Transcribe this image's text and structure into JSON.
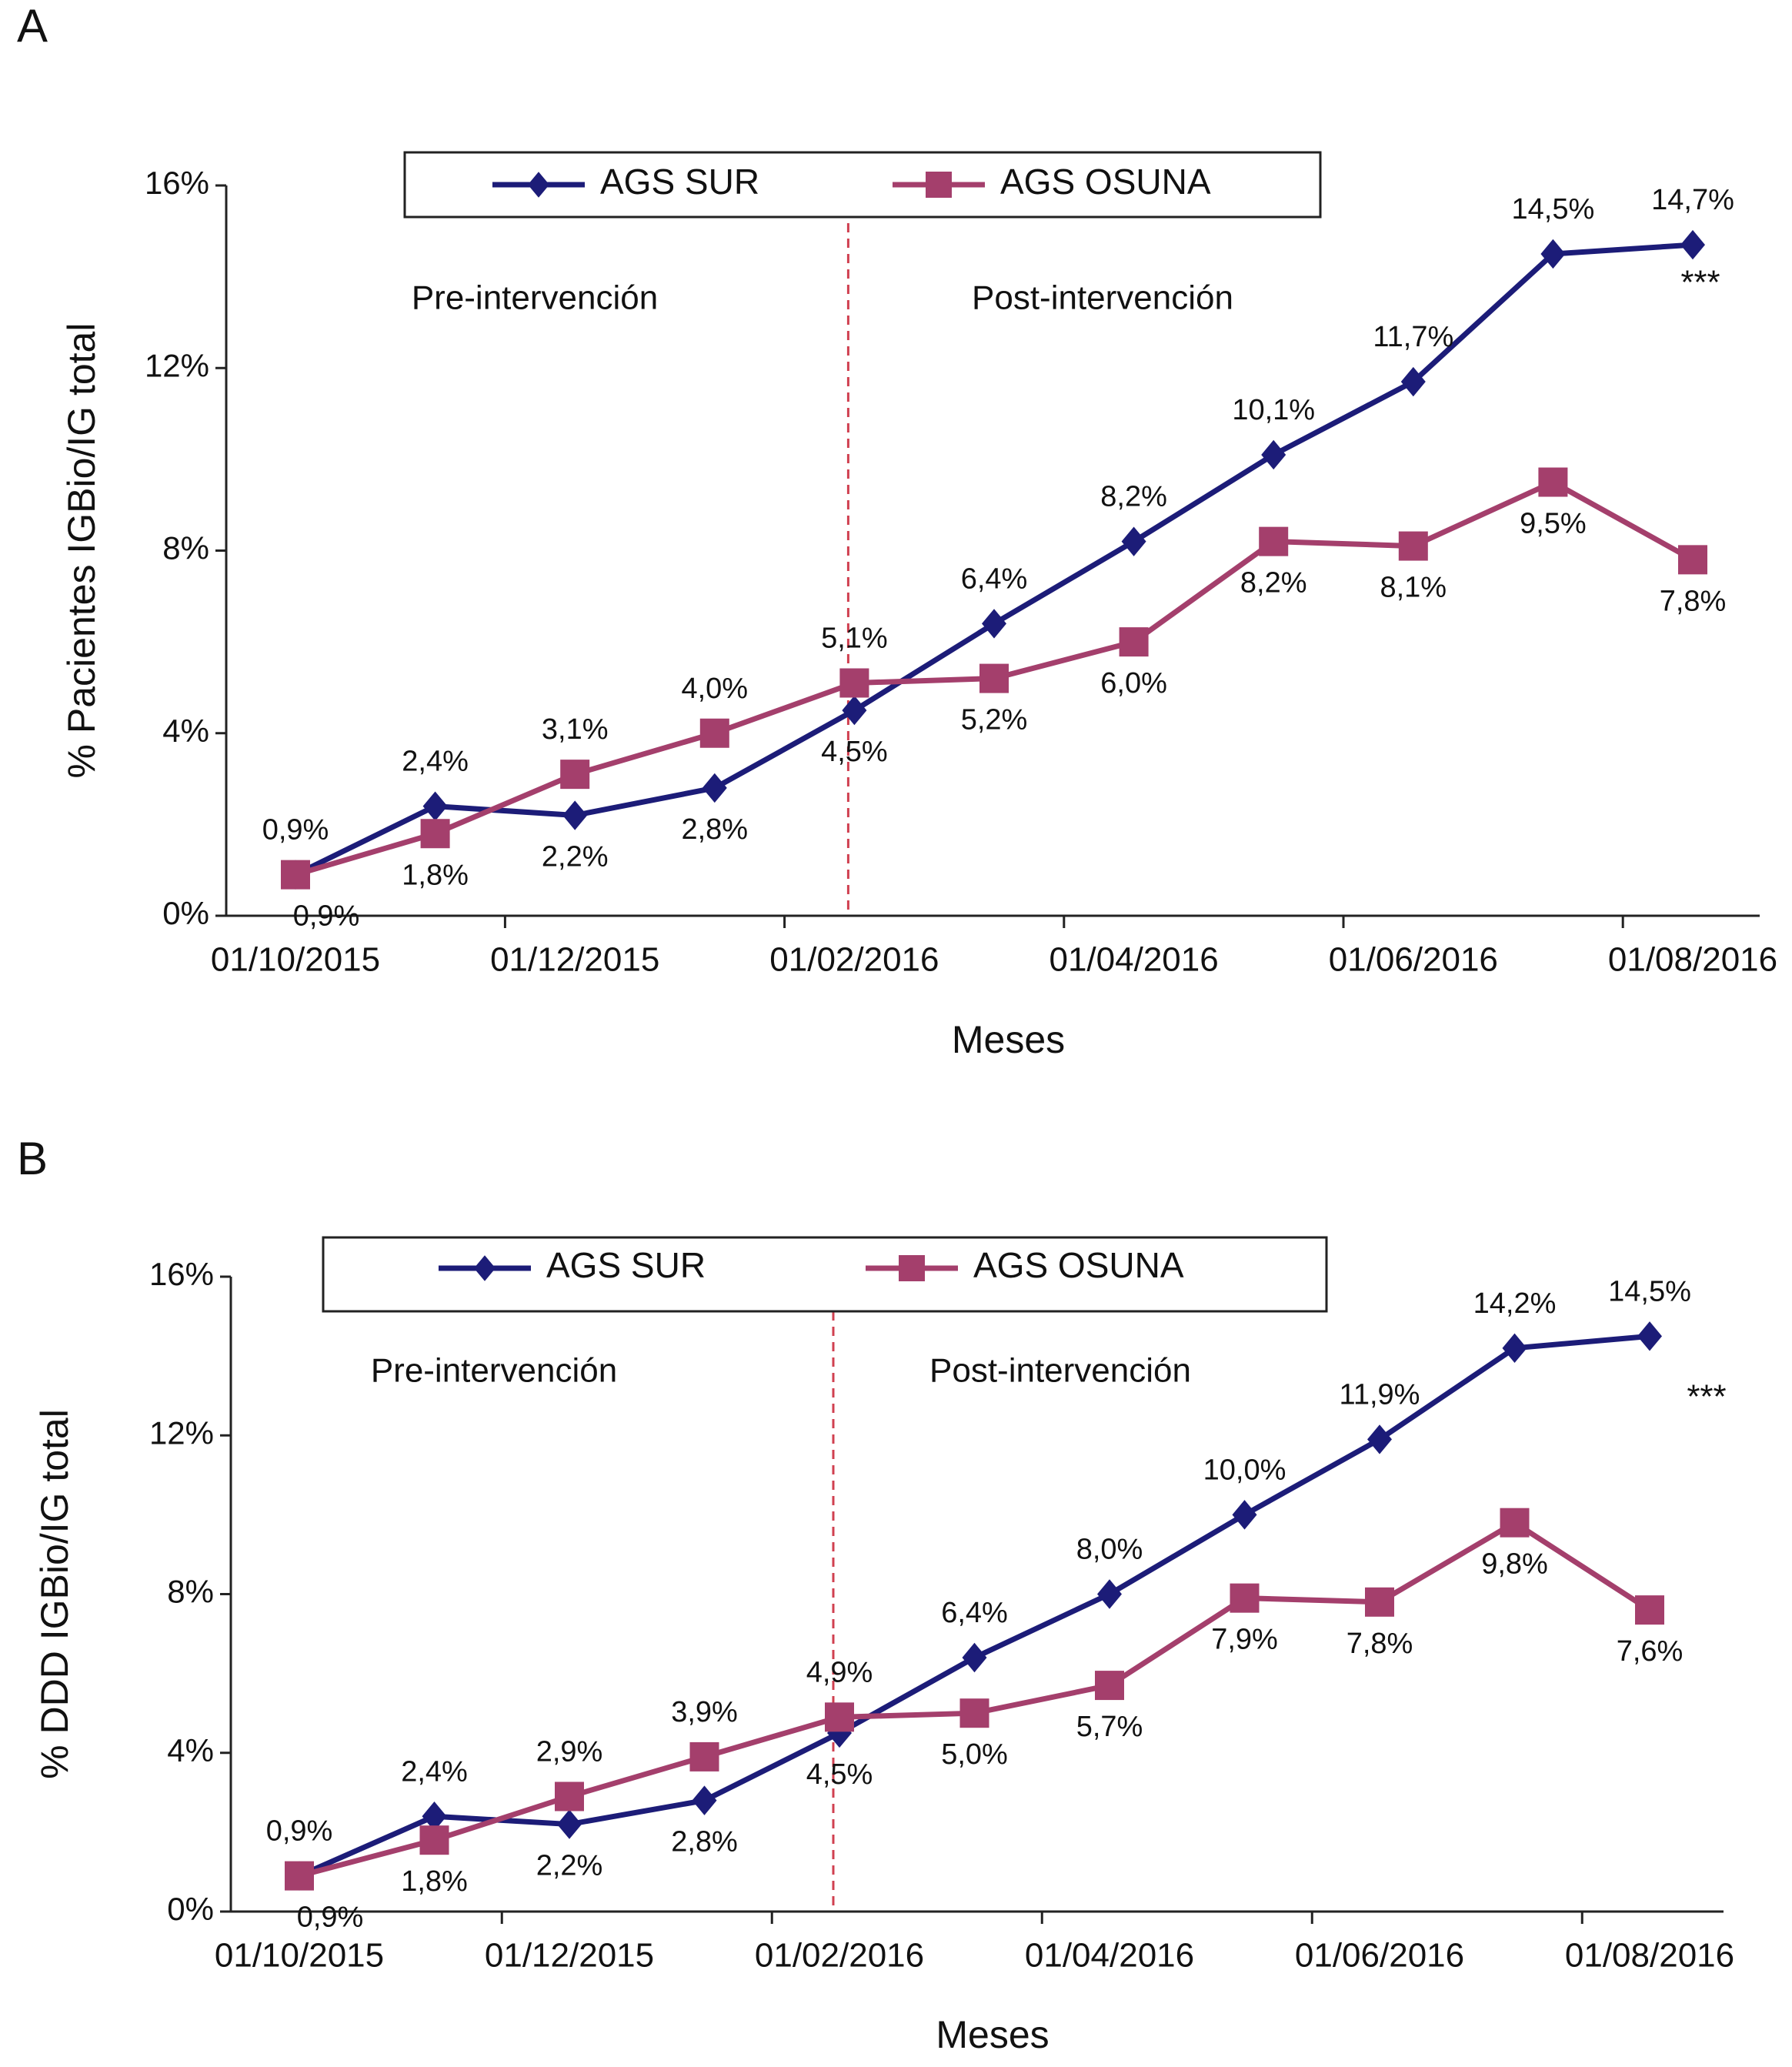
{
  "chart_data": [
    {
      "type": "line",
      "panel_label": "A",
      "y_label": "% Pacientes IGBio/IG total",
      "x_label": "Meses",
      "annotations": [
        "Pre-intervención",
        "Post-intervención",
        "***"
      ],
      "categories": [
        "01/10/2015",
        null,
        "01/12/2015",
        null,
        "01/02/2016",
        null,
        "01/04/2016",
        null,
        "01/06/2016",
        null,
        "01/08/2016"
      ],
      "ylim": [
        0,
        16
      ],
      "yticks": [
        {
          "value": 0,
          "label": "0%"
        },
        {
          "value": 4,
          "label": "4%"
        },
        {
          "value": 8,
          "label": "8%"
        },
        {
          "value": 12,
          "label": "12%"
        },
        {
          "value": 16,
          "label": "16%"
        }
      ],
      "series": [
        {
          "name": "AGS SUR",
          "color": "#1c1c78",
          "marker": "diamond",
          "values": [
            0.9,
            2.4,
            2.2,
            2.8,
            4.5,
            6.4,
            8.2,
            10.1,
            11.7,
            14.5,
            14.7
          ],
          "value_labels": [
            "0,9%",
            "2,4%",
            "2,2%",
            "2,8%",
            "4,5%",
            "6,4%",
            "8,2%",
            "10,1%",
            "11,7%",
            "14,5%",
            "14,7%"
          ]
        },
        {
          "name": "AGS OSUNA",
          "color": "#a43f6c",
          "marker": "square",
          "values": [
            0.9,
            1.8,
            3.1,
            4.0,
            5.1,
            5.2,
            6.0,
            8.2,
            8.1,
            9.5,
            7.8
          ],
          "value_labels": [
            "0,9%",
            "1,8%",
            "3,1%",
            "4,0%",
            "5,1%",
            "5,2%",
            "6,0%",
            "8,2%",
            "8,1%",
            "9,5%",
            "7,8%"
          ]
        }
      ]
    },
    {
      "type": "line",
      "panel_label": "B",
      "y_label": "% DDD IGBio/IG total",
      "x_label": "Meses",
      "annotations": [
        "Pre-intervención",
        "Post-intervención",
        "***"
      ],
      "categories": [
        "01/10/2015",
        null,
        "01/12/2015",
        null,
        "01/02/2016",
        null,
        "01/04/2016",
        null,
        "01/06/2016",
        null,
        "01/08/2016"
      ],
      "ylim": [
        0,
        16
      ],
      "yticks": [
        {
          "value": 0,
          "label": "0%"
        },
        {
          "value": 4,
          "label": "4%"
        },
        {
          "value": 8,
          "label": "8%"
        },
        {
          "value": 12,
          "label": "12%"
        },
        {
          "value": 16,
          "label": "16%"
        }
      ],
      "series": [
        {
          "name": "AGS SUR",
          "color": "#1c1c78",
          "marker": "diamond",
          "values": [
            0.9,
            2.4,
            2.2,
            2.8,
            4.5,
            6.4,
            8.0,
            10.0,
            11.9,
            14.2,
            14.5
          ],
          "value_labels": [
            "0,9%",
            "2,4%",
            "2,2%",
            "2,8%",
            "4,5%",
            "6,4%",
            "8,0%",
            "10,0%",
            "11,9%",
            "14,2%",
            "14,5%"
          ]
        },
        {
          "name": "AGS OSUNA",
          "color": "#a43f6c",
          "marker": "square",
          "values": [
            0.9,
            1.8,
            2.9,
            3.9,
            4.9,
            5.0,
            5.7,
            7.9,
            7.8,
            9.8,
            7.6
          ],
          "value_labels": [
            "0,9%",
            "1,8%",
            "2,9%",
            "3,9%",
            "4,9%",
            "5,0%",
            "5,7%",
            "7,9%",
            "7,8%",
            "9,8%",
            "7,6%"
          ]
        }
      ]
    }
  ]
}
